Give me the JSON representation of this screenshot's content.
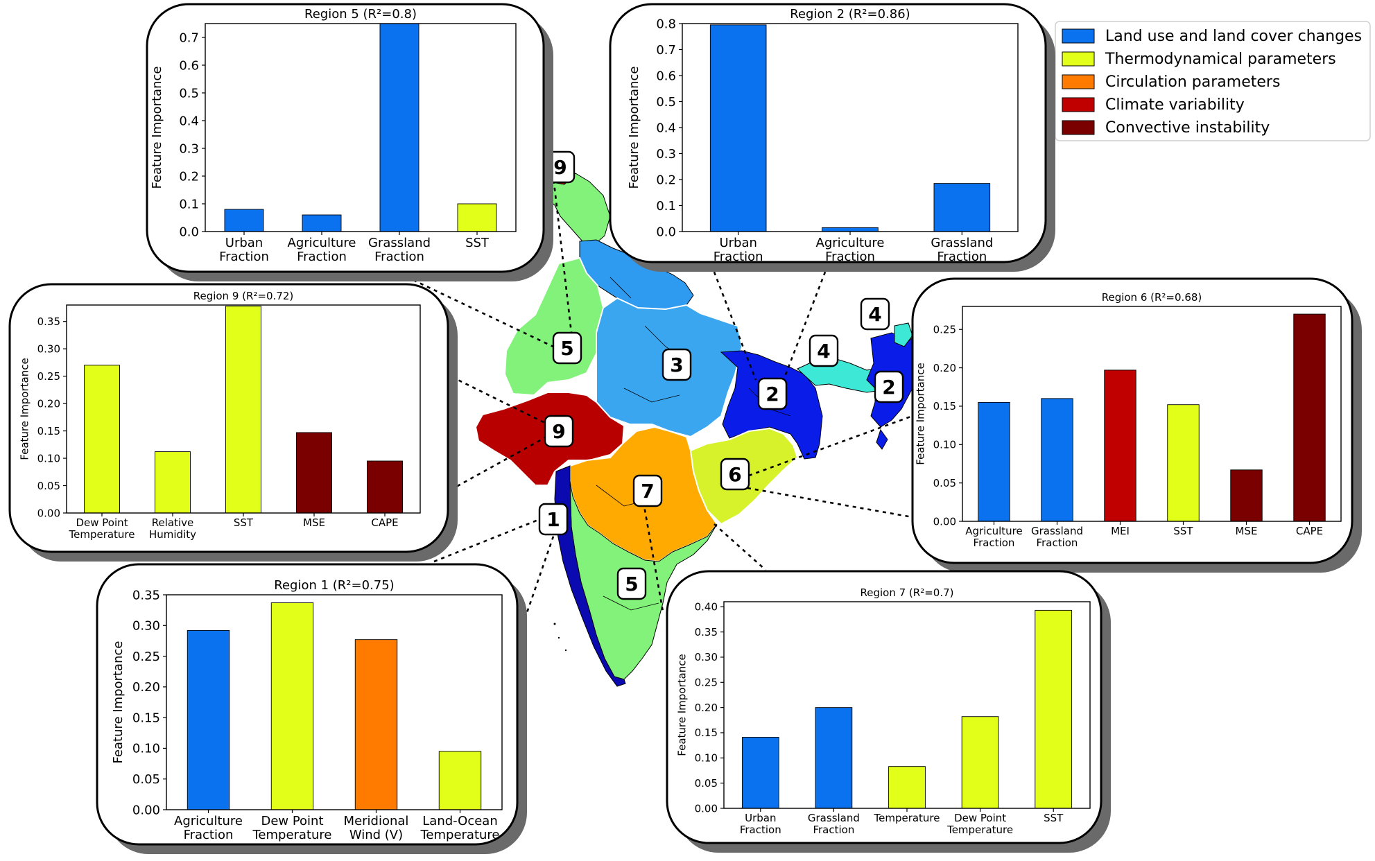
{
  "colors": {
    "land_use": "#0b72ef",
    "thermo": "#e2ff1a",
    "circulation": "#ff7b00",
    "climate": "#c00000",
    "convective": "#7a0000",
    "map_light_green": "#82f27a",
    "map_light_blue": "#2f9bf0",
    "map_sky": "#3aa6ef",
    "map_dark_blue": "#0a1de8",
    "map_navy": "#0a0ab0",
    "map_cyan": "#3ee8d6",
    "map_orange": "#ffaa00",
    "map_yellow_green": "#d7f22a",
    "map_dark_red": "#b80000"
  },
  "legend": {
    "items": [
      {
        "label": "Land use and land cover changes",
        "color": "#0b72ef"
      },
      {
        "label": "Thermodynamical parameters",
        "color": "#e2ff1a"
      },
      {
        "label": "Circulation parameters",
        "color": "#ff7b00"
      },
      {
        "label": "Climate variability",
        "color": "#c00000"
      },
      {
        "label": "Convective instability",
        "color": "#7a0000"
      }
    ]
  },
  "map": {
    "region_labels": [
      "9",
      "5",
      "3",
      "2",
      "4",
      "4",
      "2",
      "9",
      "6",
      "7",
      "1",
      "5"
    ]
  },
  "chart_data": [
    {
      "id": "region5",
      "type": "bar",
      "title": "Region 5 (R²=0.8)",
      "ylabel": "Feature Importance",
      "categories": [
        [
          "Urban",
          "Fraction"
        ],
        [
          "Agriculture",
          "Fraction"
        ],
        [
          "Grassland",
          "Fraction"
        ],
        [
          "SST"
        ]
      ],
      "values": [
        0.08,
        0.06,
        0.75,
        0.1
      ],
      "colors": [
        "#0b72ef",
        "#0b72ef",
        "#0b72ef",
        "#e2ff1a"
      ],
      "ylim": [
        0,
        0.75
      ],
      "yticks": [
        "0.0",
        "0.1",
        "0.2",
        "0.3",
        "0.4",
        "0.5",
        "0.6",
        "0.7"
      ]
    },
    {
      "id": "region2",
      "type": "bar",
      "title": "Region 2 (R²=0.86)",
      "ylabel": "Feature Importance",
      "categories": [
        [
          "Urban",
          "Fraction"
        ],
        [
          "Agriculture",
          "Fraction"
        ],
        [
          "Grassland",
          "Fraction"
        ]
      ],
      "values": [
        0.795,
        0.015,
        0.185
      ],
      "colors": [
        "#0b72ef",
        "#0b72ef",
        "#0b72ef"
      ],
      "ylim": [
        0,
        0.8
      ],
      "yticks": [
        "0.0",
        "0.1",
        "0.2",
        "0.3",
        "0.4",
        "0.5",
        "0.6",
        "0.7",
        "0.8"
      ]
    },
    {
      "id": "region9",
      "type": "bar",
      "title": "Region 9 (R²=0.72)",
      "ylabel": "Feature Importance",
      "categories": [
        [
          "Dew Point",
          "Temperature"
        ],
        [
          "Relative",
          "Humidity"
        ],
        [
          "SST"
        ],
        [
          "MSE"
        ],
        [
          "CAPE"
        ]
      ],
      "values": [
        0.27,
        0.112,
        0.378,
        0.147,
        0.095
      ],
      "colors": [
        "#e2ff1a",
        "#e2ff1a",
        "#e2ff1a",
        "#7a0000",
        "#7a0000"
      ],
      "ylim": [
        0,
        0.38
      ],
      "yticks": [
        "0.00",
        "0.05",
        "0.10",
        "0.15",
        "0.20",
        "0.25",
        "0.30",
        "0.35"
      ]
    },
    {
      "id": "region6",
      "type": "bar",
      "title": "Region 6 (R²=0.68)",
      "ylabel": "Feature Importance",
      "categories": [
        [
          "Agriculture",
          "Fraction"
        ],
        [
          "Grassland",
          "Fraction"
        ],
        [
          "MEI"
        ],
        [
          "SST"
        ],
        [
          "MSE"
        ],
        [
          "CAPE"
        ]
      ],
      "values": [
        0.155,
        0.16,
        0.197,
        0.152,
        0.067,
        0.27
      ],
      "colors": [
        "#0b72ef",
        "#0b72ef",
        "#c00000",
        "#e2ff1a",
        "#7a0000",
        "#7a0000"
      ],
      "ylim": [
        0,
        0.28
      ],
      "yticks": [
        "0.00",
        "0.05",
        "0.10",
        "0.15",
        "0.20",
        "0.25"
      ]
    },
    {
      "id": "region1",
      "type": "bar",
      "title": "Region 1 (R²=0.75)",
      "ylabel": "Feature Importance",
      "categories": [
        [
          "Agriculture",
          "Fraction"
        ],
        [
          "Dew Point",
          "Temperature"
        ],
        [
          "Meridional",
          "Wind (V)"
        ],
        [
          "Land-Ocean",
          "Temperature"
        ]
      ],
      "values": [
        0.292,
        0.337,
        0.277,
        0.095
      ],
      "colors": [
        "#0b72ef",
        "#e2ff1a",
        "#ff7b00",
        "#e2ff1a"
      ],
      "ylim": [
        0,
        0.35
      ],
      "yticks": [
        "0.00",
        "0.05",
        "0.10",
        "0.15",
        "0.20",
        "0.25",
        "0.30",
        "0.35"
      ]
    },
    {
      "id": "region7",
      "type": "bar",
      "title": "Region 7 (R²=0.7)",
      "ylabel": "Feature Importance",
      "categories": [
        [
          "Urban",
          "Fraction"
        ],
        [
          "Grassland",
          "Fraction"
        ],
        [
          "Temperature"
        ],
        [
          "Dew Point",
          "Temperature"
        ],
        [
          "SST"
        ]
      ],
      "values": [
        0.141,
        0.2,
        0.083,
        0.182,
        0.393
      ],
      "colors": [
        "#0b72ef",
        "#0b72ef",
        "#e2ff1a",
        "#e2ff1a",
        "#e2ff1a"
      ],
      "ylim": [
        0,
        0.41
      ],
      "yticks": [
        "0.00",
        "0.05",
        "0.10",
        "0.15",
        "0.20",
        "0.25",
        "0.30",
        "0.35",
        "0.40"
      ]
    }
  ]
}
